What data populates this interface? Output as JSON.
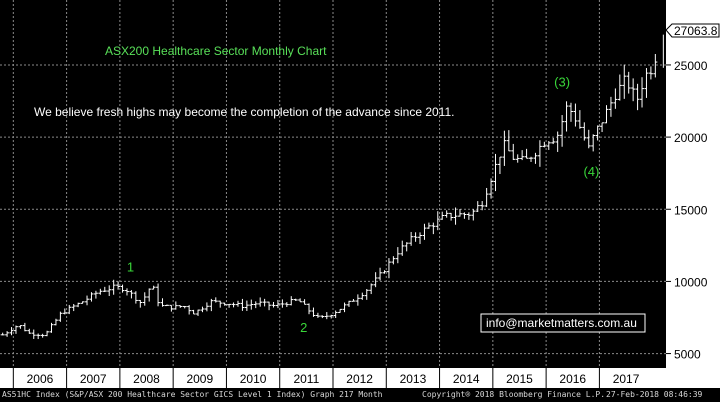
{
  "chart_data": {
    "type": "ohlc-bar",
    "title": "ASX200 Healthcare Sector Monthly Chart",
    "annotation": "We believe fresh highs may become the completion of the advance since 2011.",
    "ylim": [
      4000,
      29500
    ],
    "xlim": [
      2005.75,
      2018.25
    ],
    "yticks": [
      5000,
      10000,
      15000,
      20000,
      25000
    ],
    "ytick_labels": [
      "5000",
      "10000",
      "15000",
      "20000",
      "25000"
    ],
    "xticks": [
      2006,
      2007,
      2008,
      2009,
      2010,
      2011,
      2012,
      2013,
      2014,
      2015,
      2016,
      2017
    ],
    "xtick_labels": [
      "2006",
      "2007",
      "2008",
      "2009",
      "2010",
      "2011",
      "2012",
      "2013",
      "2014",
      "2015",
      "2016",
      "2017"
    ],
    "last_price_label": "27063.8",
    "grid": true,
    "wave_labels": [
      {
        "text": "1",
        "x": 2008.2,
        "y": 10700
      },
      {
        "text": "2",
        "x": 2011.45,
        "y": 6500
      },
      {
        "text": "(3)",
        "x": 2016.3,
        "y": 23500
      },
      {
        "text": "(4)",
        "x": 2016.85,
        "y": 17300
      }
    ],
    "anchors": [
      [
        2005.8,
        6300
      ],
      [
        2006.1,
        7000
      ],
      [
        2006.3,
        6400
      ],
      [
        2006.6,
        6300
      ],
      [
        2006.9,
        7800
      ],
      [
        2007.3,
        8600
      ],
      [
        2007.6,
        9300
      ],
      [
        2007.9,
        9600
      ],
      [
        2008.1,
        9500
      ],
      [
        2008.4,
        8500
      ],
      [
        2008.6,
        9800
      ],
      [
        2008.75,
        8300
      ],
      [
        2009.0,
        8200
      ],
      [
        2009.2,
        8300
      ],
      [
        2009.4,
        7800
      ],
      [
        2009.7,
        8600
      ],
      [
        2010.0,
        8500
      ],
      [
        2010.3,
        8300
      ],
      [
        2010.6,
        8500
      ],
      [
        2010.9,
        8300
      ],
      [
        2011.1,
        8500
      ],
      [
        2011.35,
        8700
      ],
      [
        2011.6,
        7800
      ],
      [
        2011.75,
        7400
      ],
      [
        2012.0,
        7800
      ],
      [
        2012.3,
        8500
      ],
      [
        2012.6,
        9300
      ],
      [
        2012.9,
        10500
      ],
      [
        2013.2,
        12000
      ],
      [
        2013.5,
        13000
      ],
      [
        2013.8,
        13800
      ],
      [
        2014.1,
        14500
      ],
      [
        2014.3,
        14600
      ],
      [
        2014.6,
        14700
      ],
      [
        2014.8,
        15500
      ],
      [
        2015.0,
        17500
      ],
      [
        2015.2,
        19500
      ],
      [
        2015.4,
        18500
      ],
      [
        2015.6,
        18300
      ],
      [
        2015.8,
        19000
      ],
      [
        2016.0,
        19800
      ],
      [
        2016.2,
        20000
      ],
      [
        2016.4,
        22200
      ],
      [
        2016.6,
        21000
      ],
      [
        2016.8,
        19200
      ],
      [
        2016.9,
        20100
      ],
      [
        2017.1,
        21500
      ],
      [
        2017.3,
        23000
      ],
      [
        2017.5,
        24000
      ],
      [
        2017.7,
        22500
      ],
      [
        2017.85,
        24200
      ],
      [
        2018.0,
        24900
      ],
      [
        2018.12,
        26500
      ]
    ],
    "source_note": "info@marketmatters.com.au",
    "footer_left": "AS51HC Index (S&P/ASX 200 Healthcare Sector GICS Level 1 Index) Graph 217  Month",
    "footer_mid": "Copyright® 2018 Bloomberg Finance L.P.",
    "footer_right": "27-Feb-2018 08:46:39",
    "colors": {
      "background": "#000000",
      "bars": "#ffffff",
      "grid": "#8a8a8a",
      "title": "#59e059",
      "wave_labels": "#39d639",
      "axis_panel": "#ffffff",
      "text": "#ffffff"
    }
  }
}
